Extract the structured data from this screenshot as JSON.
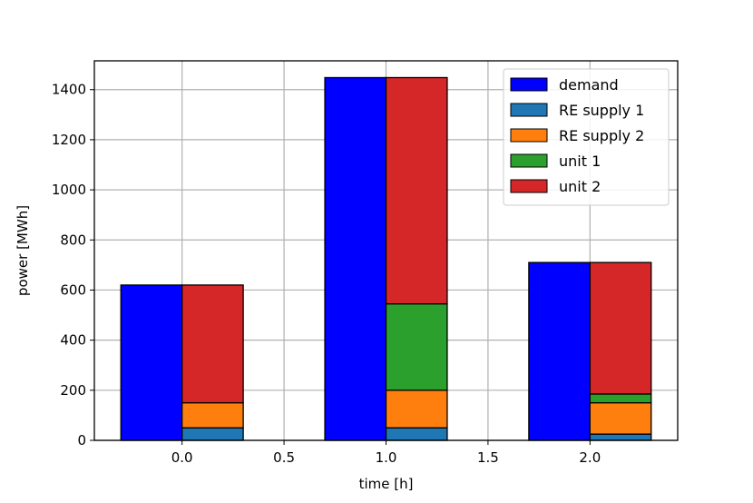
{
  "chart_data": {
    "type": "bar",
    "subtype": "grouped-stacked",
    "xlabel": "time [h]",
    "ylabel": "power [MWh]",
    "xlim": [
      -0.43,
      2.43
    ],
    "ylim": [
      0,
      1515
    ],
    "xticks": [
      0.0,
      0.5,
      1.0,
      1.5,
      2.0
    ],
    "xtick_labels": [
      "0.0",
      "0.5",
      "1.0",
      "1.5",
      "2.0"
    ],
    "yticks": [
      0,
      200,
      400,
      600,
      800,
      1000,
      1200,
      1400
    ],
    "ytick_labels": [
      "0",
      "200",
      "400",
      "600",
      "800",
      "1000",
      "1200",
      "1400"
    ],
    "grid": true,
    "legend_position": "top-right",
    "x": [
      0,
      1,
      2
    ],
    "bar_width": 0.3,
    "series": [
      {
        "name": "demand",
        "color": "#0000ff",
        "offset": -0.15,
        "stack": "demand",
        "values": [
          620,
          1448,
          710
        ]
      },
      {
        "name": "RE supply 1",
        "color": "#1f77b4",
        "offset": 0.15,
        "stack": "supply",
        "values": [
          50,
          50,
          25
        ]
      },
      {
        "name": "RE supply 2",
        "color": "#ff7f0e",
        "offset": 0.15,
        "stack": "supply",
        "values": [
          100,
          150,
          125
        ]
      },
      {
        "name": "unit 1",
        "color": "#2ca02c",
        "offset": 0.15,
        "stack": "supply",
        "values": [
          0,
          345,
          35
        ]
      },
      {
        "name": "unit 2",
        "color": "#d62728",
        "offset": 0.15,
        "stack": "supply",
        "values": [
          470,
          903,
          525
        ]
      }
    ]
  }
}
